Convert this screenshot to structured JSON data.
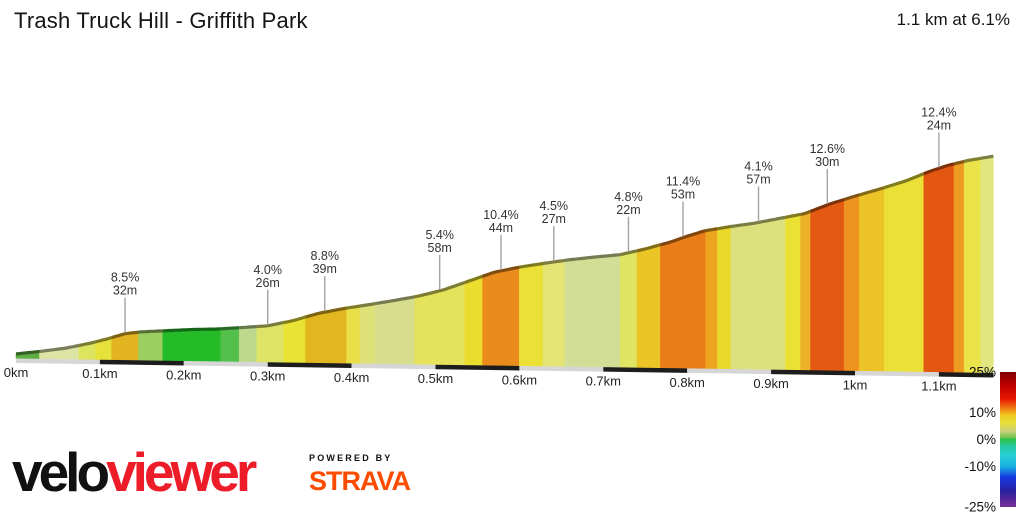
{
  "header": {
    "title": "Trash Truck Hill - Griffith Park",
    "summary": "1.1 km at 6.1%"
  },
  "chart_data": {
    "type": "area",
    "title": "Trash Truck Hill - Griffith Park",
    "summary": "1.1 km at 6.1%",
    "total_distance_km": 1.1,
    "avg_gradient_pct": 6.1,
    "x_unit": "km",
    "x_ticks": [
      {
        "km": 0,
        "label": "0km"
      },
      {
        "km": 0.1,
        "label": "0.1km"
      },
      {
        "km": 0.2,
        "label": "0.2km"
      },
      {
        "km": 0.3,
        "label": "0.3km"
      },
      {
        "km": 0.4,
        "label": "0.4km"
      },
      {
        "km": 0.5,
        "label": "0.5km"
      },
      {
        "km": 0.6,
        "label": "0.6km"
      },
      {
        "km": 0.7,
        "label": "0.7km"
      },
      {
        "km": 0.8,
        "label": "0.8km"
      },
      {
        "km": 0.9,
        "label": "0.9km"
      },
      {
        "km": 1.0,
        "label": "1km"
      },
      {
        "km": 1.1,
        "label": "1.1km"
      }
    ],
    "profile_km_elevation_m": [
      [
        0,
        1
      ],
      [
        0.03,
        2
      ],
      [
        0.06,
        3.2
      ],
      [
        0.09,
        5
      ],
      [
        0.11,
        6.5
      ],
      [
        0.13,
        8.2
      ],
      [
        0.15,
        8.9
      ],
      [
        0.18,
        9.4
      ],
      [
        0.21,
        9.9
      ],
      [
        0.24,
        10.2
      ],
      [
        0.27,
        10.8
      ],
      [
        0.3,
        11.5
      ],
      [
        0.33,
        13.3
      ],
      [
        0.36,
        15.8
      ],
      [
        0.39,
        17.5
      ],
      [
        0.42,
        18.9
      ],
      [
        0.45,
        20.4
      ],
      [
        0.48,
        22
      ],
      [
        0.51,
        24.2
      ],
      [
        0.54,
        27.2
      ],
      [
        0.57,
        30.2
      ],
      [
        0.6,
        32
      ],
      [
        0.63,
        33.4
      ],
      [
        0.66,
        34.7
      ],
      [
        0.69,
        35.7
      ],
      [
        0.72,
        36.6
      ],
      [
        0.75,
        38.6
      ],
      [
        0.78,
        41
      ],
      [
        0.8,
        43
      ],
      [
        0.82,
        44.8
      ],
      [
        0.85,
        46.3
      ],
      [
        0.88,
        47.6
      ],
      [
        0.91,
        49.3
      ],
      [
        0.94,
        51
      ],
      [
        0.97,
        54.3
      ],
      [
        1.0,
        57
      ],
      [
        1.03,
        59.5
      ],
      [
        1.06,
        62.2
      ],
      [
        1.09,
        65.6
      ],
      [
        1.11,
        67.5
      ],
      [
        1.135,
        69.3
      ],
      [
        1.165,
        70.8
      ]
    ],
    "segments": [
      {
        "from": 0.0,
        "to": 0.028,
        "color": "#5fae43"
      },
      {
        "from": 0.028,
        "to": 0.075,
        "color": "#dde4a4"
      },
      {
        "from": 0.075,
        "to": 0.095,
        "color": "#dde45e"
      },
      {
        "from": 0.095,
        "to": 0.114,
        "color": "#e7e23a"
      },
      {
        "from": 0.114,
        "to": 0.146,
        "color": "#e2b421"
      },
      {
        "from": 0.146,
        "to": 0.175,
        "color": "#9cce62"
      },
      {
        "from": 0.175,
        "to": 0.244,
        "color": "#25bb28"
      },
      {
        "from": 0.244,
        "to": 0.266,
        "color": "#52c04a"
      },
      {
        "from": 0.266,
        "to": 0.287,
        "color": "#bed88e"
      },
      {
        "from": 0.287,
        "to": 0.319,
        "color": "#dde468"
      },
      {
        "from": 0.319,
        "to": 0.345,
        "color": "#e9e335"
      },
      {
        "from": 0.345,
        "to": 0.394,
        "color": "#e2b61f"
      },
      {
        "from": 0.394,
        "to": 0.41,
        "color": "#e7df45"
      },
      {
        "from": 0.41,
        "to": 0.428,
        "color": "#dde178"
      },
      {
        "from": 0.428,
        "to": 0.475,
        "color": "#d6de8e"
      },
      {
        "from": 0.475,
        "to": 0.535,
        "color": "#e5e25c"
      },
      {
        "from": 0.535,
        "to": 0.556,
        "color": "#eadd2d"
      },
      {
        "from": 0.556,
        "to": 0.6,
        "color": "#ea8c1c"
      },
      {
        "from": 0.6,
        "to": 0.628,
        "color": "#eae036"
      },
      {
        "from": 0.628,
        "to": 0.654,
        "color": "#e5e373"
      },
      {
        "from": 0.654,
        "to": 0.72,
        "color": "#d2dd95"
      },
      {
        "from": 0.72,
        "to": 0.74,
        "color": "#dfe462"
      },
      {
        "from": 0.74,
        "to": 0.768,
        "color": "#ebc526"
      },
      {
        "from": 0.768,
        "to": 0.822,
        "color": "#e97d17"
      },
      {
        "from": 0.822,
        "to": 0.836,
        "color": "#eda41f"
      },
      {
        "from": 0.836,
        "to": 0.852,
        "color": "#ead92b"
      },
      {
        "from": 0.852,
        "to": 0.917,
        "color": "#dce17e"
      },
      {
        "from": 0.917,
        "to": 0.935,
        "color": "#eae134"
      },
      {
        "from": 0.935,
        "to": 0.947,
        "color": "#edb129"
      },
      {
        "from": 0.947,
        "to": 0.987,
        "color": "#e55a12"
      },
      {
        "from": 0.987,
        "to": 1.005,
        "color": "#ee9320"
      },
      {
        "from": 1.005,
        "to": 1.035,
        "color": "#edc428"
      },
      {
        "from": 1.035,
        "to": 1.082,
        "color": "#eae037"
      },
      {
        "from": 1.082,
        "to": 1.118,
        "color": "#e45710"
      },
      {
        "from": 1.118,
        "to": 1.13,
        "color": "#ee9b21"
      },
      {
        "from": 1.13,
        "to": 1.15,
        "color": "#eae34a"
      },
      {
        "from": 1.15,
        "to": 1.165,
        "color": "#e0e77e"
      }
    ],
    "labels": [
      {
        "km": 0.13,
        "gradient": "8.5%",
        "length": "32m"
      },
      {
        "km": 0.3,
        "gradient": "4.0%",
        "length": "26m"
      },
      {
        "km": 0.368,
        "gradient": "8.8%",
        "length": "39m"
      },
      {
        "km": 0.505,
        "gradient": "5.4%",
        "length": "58m"
      },
      {
        "km": 0.578,
        "gradient": "10.4%",
        "length": "44m"
      },
      {
        "km": 0.641,
        "gradient": "4.5%",
        "length": "27m"
      },
      {
        "km": 0.73,
        "gradient": "4.8%",
        "length": "22m"
      },
      {
        "km": 0.795,
        "gradient": "11.4%",
        "length": "53m"
      },
      {
        "km": 0.885,
        "gradient": "4.1%",
        "length": "57m"
      },
      {
        "km": 0.967,
        "gradient": "12.6%",
        "length": "30m"
      },
      {
        "km": 1.1,
        "gradient": "12.4%",
        "length": "24m"
      }
    ],
    "legend": {
      "ticks": [
        {
          "value": 25,
          "label": "25%"
        },
        {
          "value": 10,
          "label": "10%"
        },
        {
          "value": 0,
          "label": "0%"
        },
        {
          "value": -10,
          "label": "-10%"
        },
        {
          "value": -25,
          "label": "-25%"
        }
      ],
      "gradient_stops": [
        [
          0,
          "#7e0000"
        ],
        [
          0.1,
          "#c00000"
        ],
        [
          0.2,
          "#e81800"
        ],
        [
          0.26,
          "#f07010"
        ],
        [
          0.32,
          "#eec81e"
        ],
        [
          0.38,
          "#e6e03a"
        ],
        [
          0.44,
          "#c8cf7e"
        ],
        [
          0.48,
          "#7ec654"
        ],
        [
          0.5,
          "#2ec04a"
        ],
        [
          0.55,
          "#28c8a0"
        ],
        [
          0.62,
          "#28d0d8"
        ],
        [
          0.7,
          "#18b0e0"
        ],
        [
          0.78,
          "#1838e0"
        ],
        [
          0.88,
          "#2820a0"
        ],
        [
          1,
          "#7c2f96"
        ]
      ]
    },
    "axis_bands": {
      "light": "#d6d6d6",
      "dark": "#1d1d1d"
    }
  },
  "footer": {
    "brand_black": "velo",
    "brand_red": "viewer",
    "brand_red_color": "#ED1C29",
    "powered_by": "POWERED BY",
    "strava": "STRAVA",
    "strava_color": "#FC4C02"
  }
}
